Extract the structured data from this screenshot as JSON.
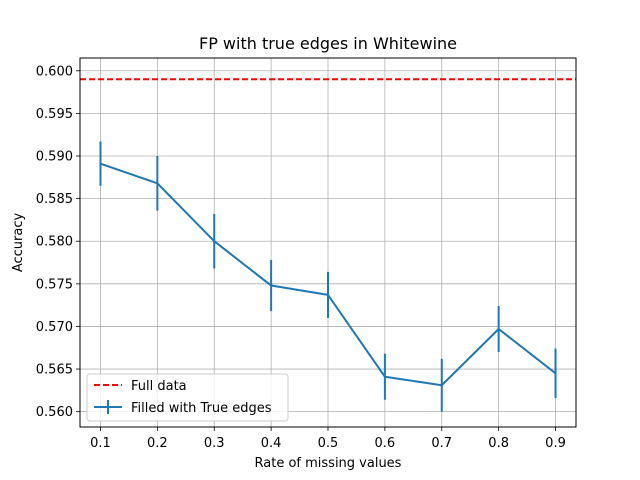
{
  "chart_data": {
    "type": "line",
    "title": "FP with true edges in Whitewine",
    "xlabel": "Rate of missing values",
    "ylabel": "Accuracy",
    "xlim": [
      0.064,
      0.936
    ],
    "ylim": [
      0.5582,
      0.6015
    ],
    "x_ticks": [
      "0.1",
      "0.2",
      "0.3",
      "0.4",
      "0.5",
      "0.6",
      "0.7",
      "0.8",
      "0.9"
    ],
    "y_ticks": [
      "0.560",
      "0.565",
      "0.570",
      "0.575",
      "0.580",
      "0.585",
      "0.590",
      "0.595",
      "0.600"
    ],
    "grid": true,
    "legend_position": "lower-left",
    "colors": {
      "series": "#1f77b4",
      "reference": "#ff0000"
    },
    "reference_line": {
      "name": "Full data",
      "y": 0.599,
      "style": "dashed"
    },
    "series": [
      {
        "name": "Filled with True edges",
        "x": [
          0.1,
          0.2,
          0.3,
          0.4,
          0.5,
          0.6,
          0.7,
          0.8,
          0.9
        ],
        "y": [
          0.5891,
          0.5868,
          0.58,
          0.5748,
          0.5737,
          0.5641,
          0.5631,
          0.5697,
          0.5645
        ],
        "err": [
          0.0026,
          0.0032,
          0.0032,
          0.003,
          0.0027,
          0.0027,
          0.0031,
          0.0027,
          0.0029
        ]
      }
    ]
  }
}
